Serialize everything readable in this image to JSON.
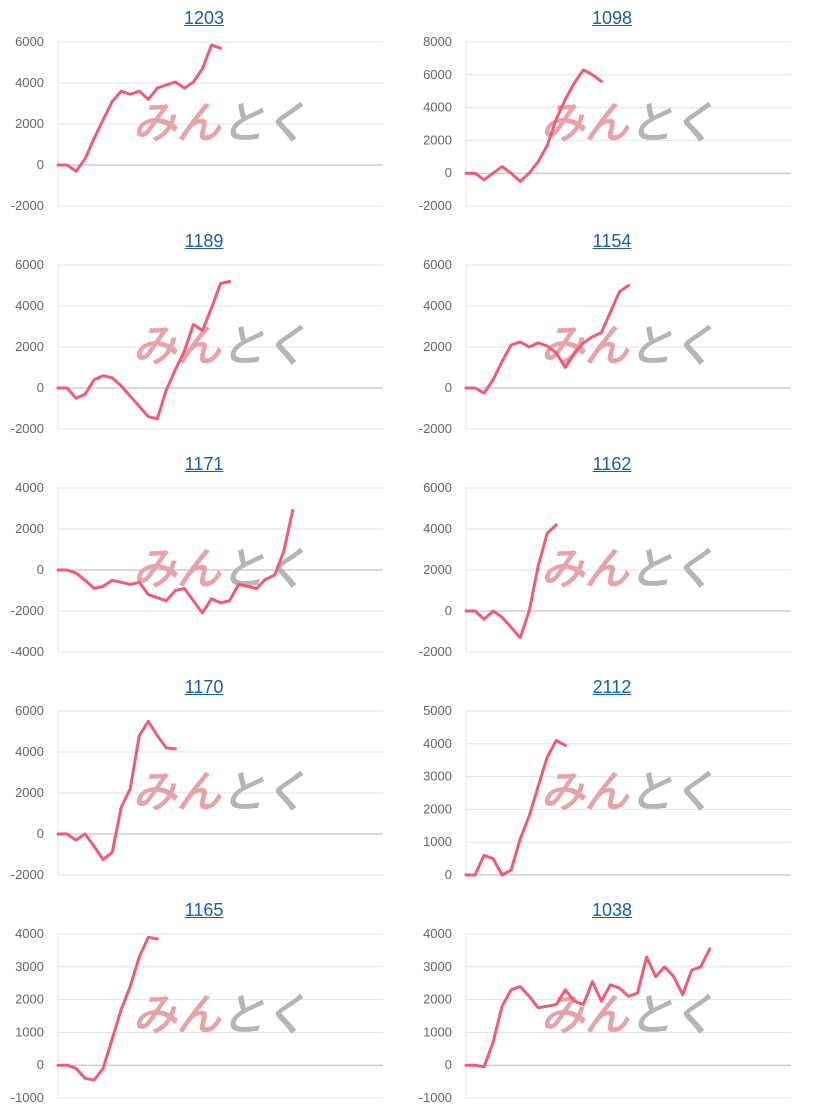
{
  "colors": {
    "line": "#ee5c78",
    "grid": "#e3e3e3",
    "zero_line": "#b8b8b8",
    "title": "#1a5ea8",
    "tick": "#666666"
  },
  "watermark": {
    "part1": "みん",
    "part2": "とく",
    "color1": "#e6a3a8",
    "color2": "#b5b5b5"
  },
  "chart_data": [
    {
      "type": "line",
      "title": "1203",
      "ylim": [
        -2000,
        6000
      ],
      "yticks": [
        "6000",
        "4000",
        "2000",
        "0",
        "-2000"
      ],
      "ytick_values": [
        6000,
        4000,
        2000,
        0,
        -2000
      ],
      "x_max": 36,
      "values": [
        0,
        0,
        -300,
        300,
        1300,
        2200,
        3100,
        3600,
        3450,
        3600,
        3200,
        3750,
        3900,
        4050,
        3750,
        4050,
        4700,
        5850,
        5700
      ]
    },
    {
      "type": "line",
      "title": "1098",
      "ylim": [
        -2000,
        8000
      ],
      "yticks": [
        "8000",
        "6000",
        "4000",
        "2000",
        "0",
        "-2000"
      ],
      "ytick_values": [
        8000,
        6000,
        4000,
        2000,
        0,
        -2000
      ],
      "x_max": 36,
      "values": [
        0,
        0,
        -400,
        0,
        400,
        0,
        -500,
        0,
        700,
        1700,
        3300,
        4500,
        5500,
        6300,
        6000,
        5600
      ]
    },
    {
      "type": "line",
      "title": "1189",
      "ylim": [
        -2000,
        6000
      ],
      "yticks": [
        "6000",
        "4000",
        "2000",
        "0",
        "-2000"
      ],
      "ytick_values": [
        6000,
        4000,
        2000,
        0,
        -2000
      ],
      "x_max": 36,
      "values": [
        0,
        0,
        -500,
        -300,
        400,
        600,
        500,
        100,
        -400,
        -900,
        -1400,
        -1500,
        -100,
        900,
        1800,
        3100,
        2800,
        3900,
        5100,
        5200
      ]
    },
    {
      "type": "line",
      "title": "1154",
      "ylim": [
        -2000,
        6000
      ],
      "yticks": [
        "6000",
        "4000",
        "2000",
        "0",
        "-2000"
      ],
      "ytick_values": [
        6000,
        4000,
        2000,
        0,
        -2000
      ],
      "x_max": 36,
      "values": [
        0,
        0,
        -250,
        400,
        1300,
        2100,
        2250,
        2000,
        2200,
        2050,
        1700,
        1000,
        1700,
        2200,
        2500,
        2700,
        3700,
        4700,
        5000
      ]
    },
    {
      "type": "line",
      "title": "1171",
      "ylim": [
        -4000,
        4000
      ],
      "yticks": [
        "4000",
        "2000",
        "0",
        "-2000",
        "-4000"
      ],
      "ytick_values": [
        4000,
        2000,
        0,
        -2000,
        -4000
      ],
      "x_max": 36,
      "values": [
        0,
        0,
        -150,
        -500,
        -900,
        -800,
        -500,
        -600,
        -700,
        -600,
        -1200,
        -1350,
        -1500,
        -1000,
        -900,
        -1500,
        -2100,
        -1400,
        -1600,
        -1500,
        -700,
        -800,
        -900,
        -450,
        -250,
        900,
        2900
      ]
    },
    {
      "type": "line",
      "title": "1162",
      "ylim": [
        -2000,
        6000
      ],
      "yticks": [
        "6000",
        "4000",
        "2000",
        "0",
        "-2000"
      ],
      "ytick_values": [
        6000,
        4000,
        2000,
        0,
        -2000
      ],
      "x_max": 36,
      "values": [
        0,
        0,
        -400,
        0,
        -300,
        -800,
        -1300,
        0,
        2200,
        3800,
        4200
      ]
    },
    {
      "type": "line",
      "title": "1170",
      "ylim": [
        -2000,
        6000
      ],
      "yticks": [
        "6000",
        "4000",
        "2000",
        "0",
        "-2000"
      ],
      "ytick_values": [
        6000,
        4000,
        2000,
        0,
        -2000
      ],
      "x_max": 36,
      "values": [
        0,
        0,
        -300,
        0,
        -600,
        -1250,
        -900,
        1300,
        2200,
        4800,
        5500,
        4800,
        4200,
        4150
      ]
    },
    {
      "type": "line",
      "title": "2112",
      "ylim": [
        0,
        5000
      ],
      "yticks": [
        "5000",
        "4000",
        "3000",
        "2000",
        "1000",
        "0"
      ],
      "ytick_values": [
        5000,
        4000,
        3000,
        2000,
        1000,
        0
      ],
      "x_max": 36,
      "values": [
        0,
        0,
        600,
        500,
        0,
        150,
        1100,
        1800,
        2700,
        3600,
        4100,
        3950
      ]
    },
    {
      "type": "line",
      "title": "1165",
      "ylim": [
        -1000,
        4000
      ],
      "yticks": [
        "4000",
        "3000",
        "2000",
        "1000",
        "0",
        "-1000"
      ],
      "ytick_values": [
        4000,
        3000,
        2000,
        1000,
        0,
        -1000
      ],
      "x_max": 36,
      "values": [
        0,
        0,
        -100,
        -400,
        -450,
        -100,
        800,
        1700,
        2400,
        3300,
        3900,
        3850
      ]
    },
    {
      "type": "line",
      "title": "1038",
      "ylim": [
        -1000,
        4000
      ],
      "yticks": [
        "4000",
        "3000",
        "2000",
        "1000",
        "0",
        "-1000"
      ],
      "ytick_values": [
        4000,
        3000,
        2000,
        1000,
        0,
        -1000
      ],
      "x_max": 36,
      "values": [
        0,
        0,
        -50,
        700,
        1800,
        2300,
        2400,
        2100,
        1750,
        1800,
        1850,
        2300,
        1950,
        1850,
        2550,
        1950,
        2450,
        2350,
        2100,
        2200,
        3300,
        2700,
        3000,
        2700,
        2150,
        2900,
        3000,
        3550
      ]
    }
  ]
}
